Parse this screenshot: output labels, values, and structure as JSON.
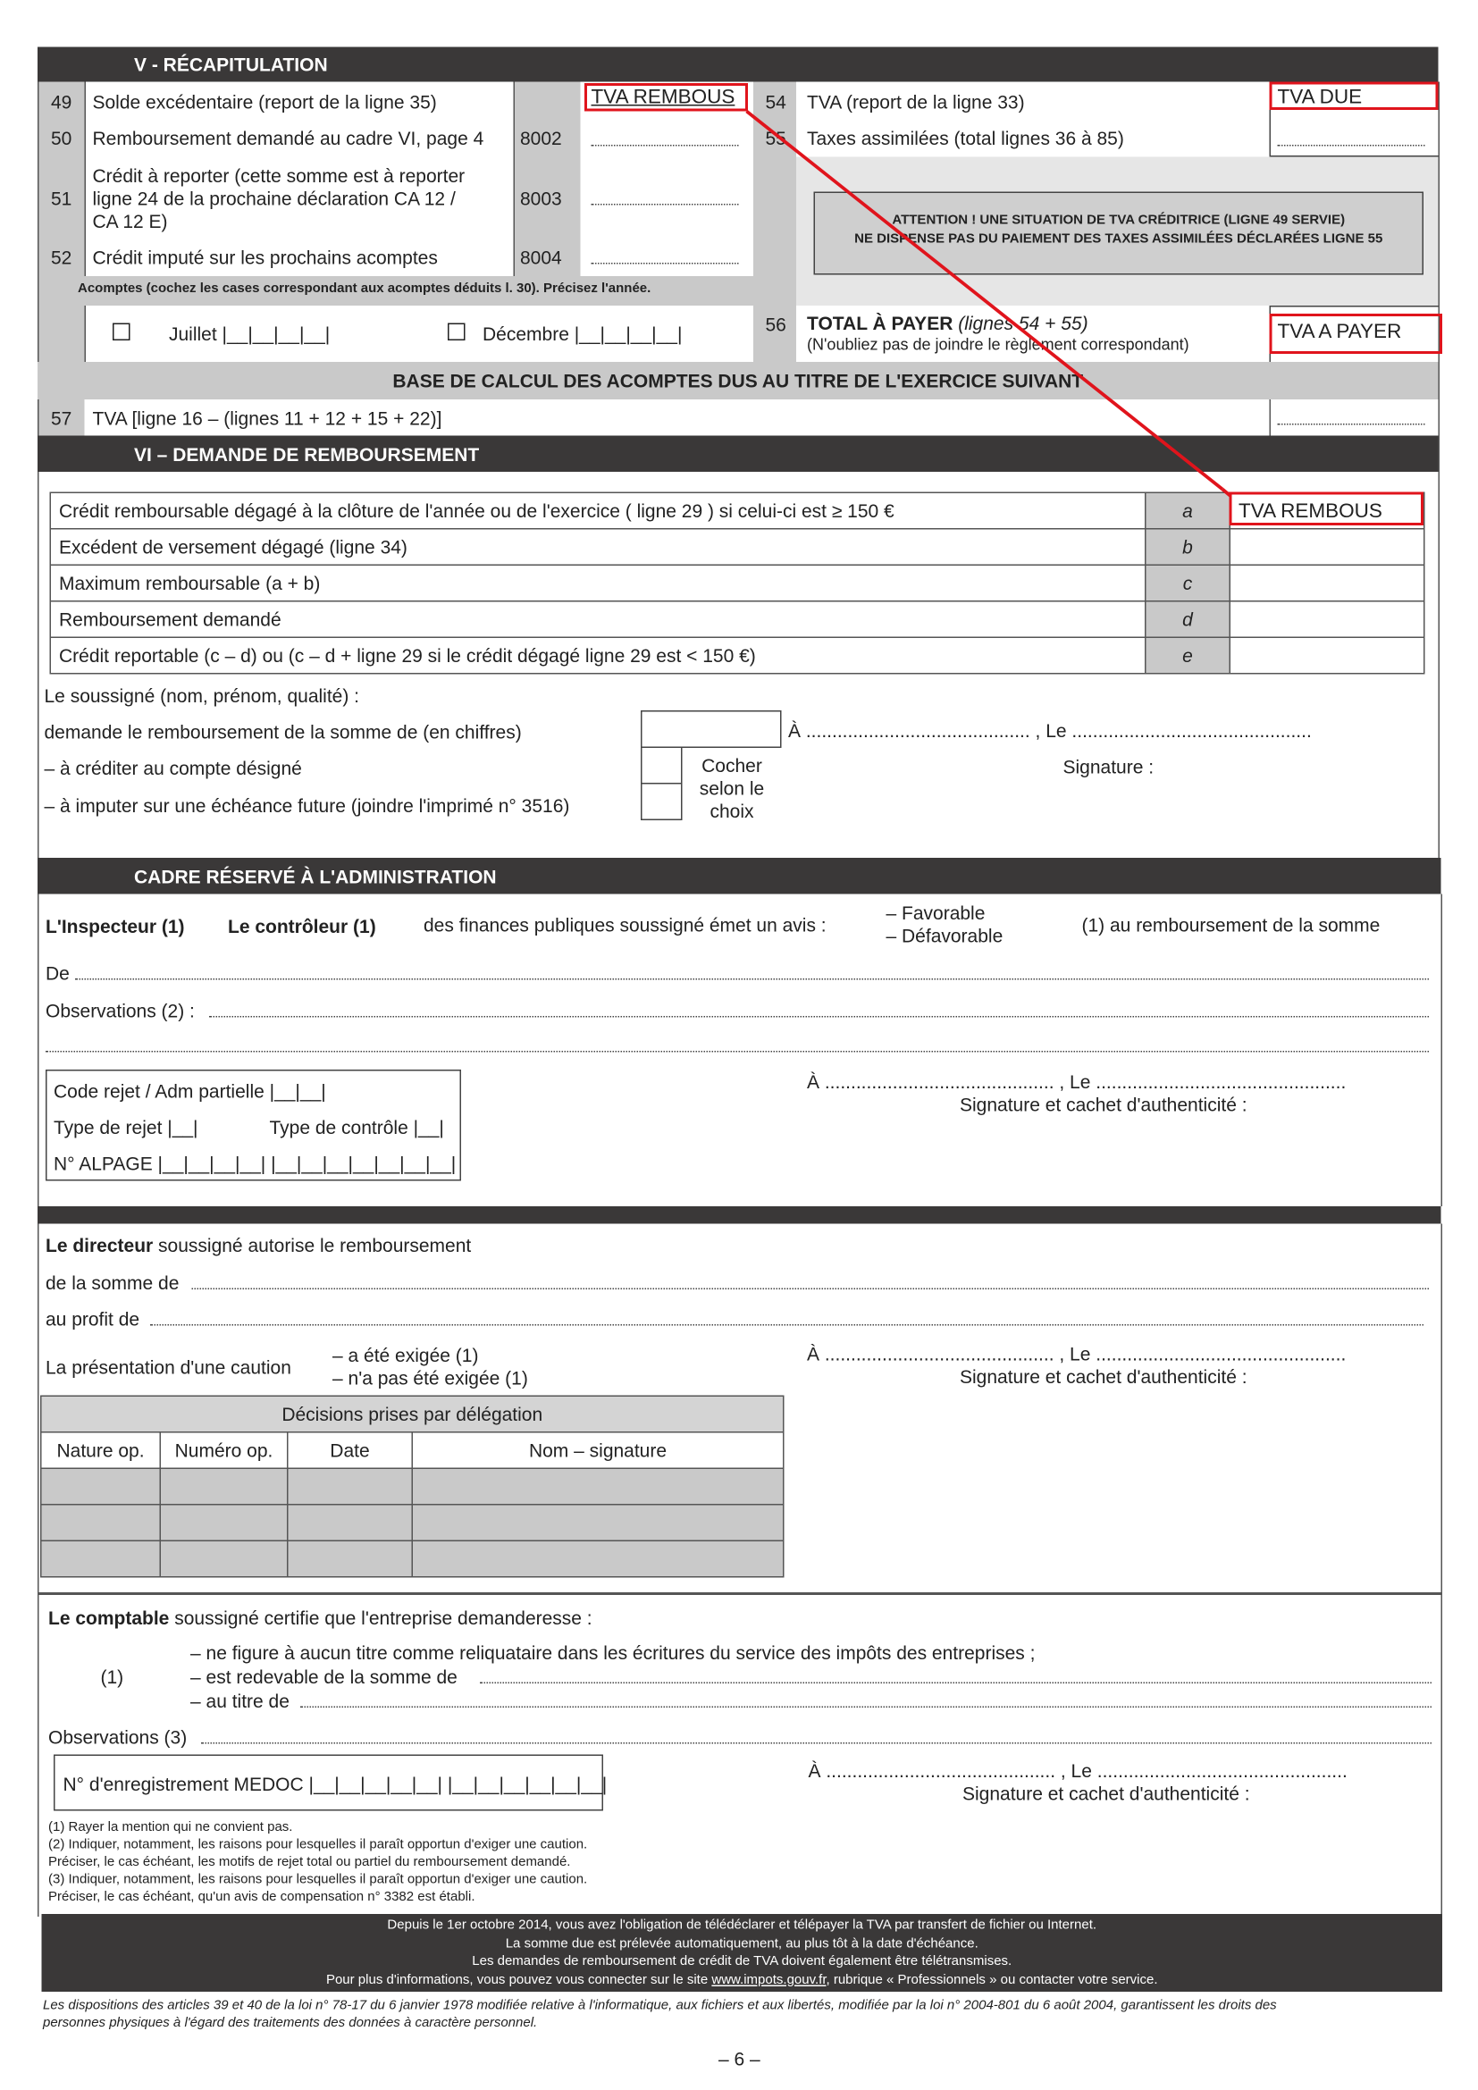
{
  "recap": {
    "title": "V - RÉCAPITULATION",
    "rows_left": [
      {
        "num": "49",
        "label": "Solde excédentaire (report de la ligne 35)",
        "code": "",
        "value": "TVA REMBOUS"
      },
      {
        "num": "50",
        "label": "Remboursement demandé au cadre VI, page 4",
        "code": "8002",
        "value": ""
      },
      {
        "num": "51",
        "label_lines": [
          "Crédit à reporter (cette somme est à reporter",
          "ligne 24 de la prochaine déclaration CA 12 /",
          "CA 12 E)"
        ],
        "code": "8003",
        "value": ""
      },
      {
        "num": "52",
        "label": "Crédit imputé sur les prochains acomptes",
        "code": "8004",
        "value": ""
      }
    ],
    "acomptes_note": "Acomptes (cochez les cases correspondant aux acomptes déduits l. 30). Précisez l'année.",
    "juillet": "Juillet |__|__|__|__|",
    "decembre": "Décembre |__|__|__|__|",
    "rows_right": [
      {
        "num": "54",
        "label": "TVA (report de la ligne 33)",
        "value": "TVA DUE"
      },
      {
        "num": "55",
        "label": "Taxes assimilées (total lignes 36 à 85)",
        "value": ""
      }
    ],
    "attention": [
      "ATTENTION ! UNE SITUATION DE TVA CRÉDITRICE (LIGNE 49 SERVIE)",
      "NE DISPENSE PAS DU PAIEMENT DES TAXES ASSIMILÉES DÉCLARÉES LIGNE 55"
    ],
    "total_num": "56",
    "total_label": "TOTAL À PAYER",
    "total_italic": "(lignes 54 + 55)",
    "total_note": "(N'oubliez pas de joindre le règlement correspondant)",
    "total_value": "TVA A PAYER",
    "base_title": "BASE DE CALCUL DES ACOMPTES DUS AU TITRE DE L'EXERCICE SUIVANT",
    "row57_num": "57",
    "row57_label": "TVA [ligne 16 – (lignes 11 + 12 + 15 + 22)]"
  },
  "rembourse": {
    "title": "VI – DEMANDE DE REMBOURSEMENT",
    "rows": [
      {
        "label": "Crédit remboursable dégagé à la clôture de l'année ou de l'exercice ( ligne 29 ) si celui-ci est ≥ 150 €",
        "letter": "a",
        "value": "TVA REMBOUS"
      },
      {
        "label": "Excédent de versement dégagé (ligne 34)",
        "letter": "b",
        "value": ""
      },
      {
        "label": "Maximum remboursable (a + b)",
        "letter": "c",
        "value": ""
      },
      {
        "label": "Remboursement demandé",
        "letter": "d",
        "value": ""
      },
      {
        "label": "Crédit reportable (c – d) ou (c – d + ligne 29 si le crédit dégagé ligne 29 est < 150 €)",
        "letter": "e",
        "value": ""
      }
    ],
    "soussigne": "Le soussigné (nom, prénom, qualité) :",
    "demande": "demande le remboursement de la somme de (en chiffres)",
    "crediter": "– à créditer au compte désigné",
    "imputer": "– à imputer sur une échéance future (joindre l'imprimé n° 3516)",
    "cocher": [
      "Cocher",
      "selon le",
      "choix"
    ],
    "a_le": "À ........................................... ,   Le ..............................................",
    "signature": "Signature :"
  },
  "admin": {
    "title": "CADRE RÉSERVÉ À L'ADMINISTRATION",
    "inspecteur": "L'Inspecteur (1)",
    "controleur": "Le contrôleur (1)",
    "avis": "des finances publiques soussigné émet un avis :",
    "favorable": "– Favorable",
    "defavorable": "– Défavorable",
    "remb_somme": "(1) au remboursement de la somme",
    "de": "De",
    "observations": "Observations (2) :",
    "code_rejet": "Code rejet / Adm partielle  |__|__|",
    "type_rejet": "Type de rejet |__|",
    "type_controle": "Type de contrôle |__|",
    "alpage": "N° ALPAGE |__|__|__|__|  |__|__|__|__|__|__|__|",
    "a_le": "À ............................................ , Le ................................................",
    "sig_cachet": "Signature et cachet d'authenticité :"
  },
  "directeur": {
    "bold": "Le directeur",
    "text": "soussigné autorise le remboursement",
    "somme": "de la somme de",
    "profit": "au profit de",
    "caution": "La présentation d'une caution",
    "exigee": "– a été exigée (1)",
    "non_exigee": "– n'a pas été exigée (1)",
    "a_le": "À ............................................ , Le ................................................",
    "sig_cachet": "Signature et cachet d'authenticité :",
    "decisions_title": "Décisions prises par délégation",
    "decisions_cols": [
      "Nature op.",
      "Numéro op.",
      "Date",
      "Nom – signature"
    ]
  },
  "comptable": {
    "bold": "Le comptable",
    "text": "soussigné certifie que l'entreprise demanderesse :",
    "marker": "(1)",
    "items": [
      "– ne figure à aucun titre comme reliquataire dans les écritures du service des impôts des entreprises ;",
      "– est redevable de la somme de",
      "– au titre de"
    ],
    "observations": "Observations (3)",
    "medoc": "N° d'enregistrement MEDOC  |__|__|__|__|__| |__|__|__|__|__|__|",
    "a_le": "À ............................................ , Le ................................................",
    "sig_cachet": "Signature et cachet d'authenticité :"
  },
  "notes": [
    "(1) Rayer la mention qui ne convient pas.",
    "(2) Indiquer, notamment, les raisons pour lesquelles il paraît opportun d'exiger une caution.",
    "Préciser, le cas échéant, les motifs de rejet total ou partiel du remboursement demandé.",
    "(3) Indiquer, notamment, les raisons pour lesquelles il paraît opportun d'exiger une caution.",
    "Préciser, le cas échéant, qu'un avis de compensation n° 3382 est établi."
  ],
  "banner": [
    "Depuis le 1er octobre 2014, vous avez l'obligation de télédéclarer et télépayer la TVA par transfert de fichier ou Internet.",
    "La somme due est prélevée automatiquement, au plus tôt à la date d'échéance.",
    "Les demandes de remboursement de crédit de TVA doivent également être télétransmises."
  ],
  "banner_last": {
    "before": "Pour plus d'informations, vous pouvez vous connecter sur le site ",
    "link": "www.impots.gouv.fr",
    "after": ", rubrique « Professionnels » ou contacter votre service."
  },
  "legal": [
    "Les dispositions des articles 39 et 40 de la loi n° 78-17 du 6 janvier 1978 modifiée relative à l'informatique, aux fichiers et aux libertés, modifiée par la loi n° 2004-801 du 6 août 2004, garantissent les droits des",
    "personnes physiques à l'égard des traitements des données à caractère personnel."
  ],
  "page_number": "– 6 –",
  "annotation_color": "#e0141c"
}
